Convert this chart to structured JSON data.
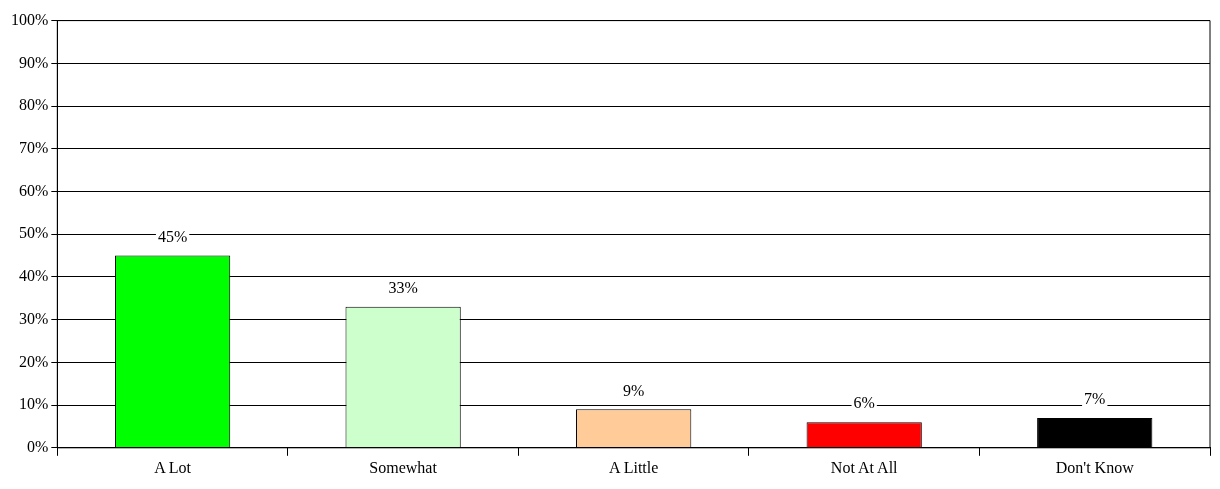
{
  "chart_data": {
    "type": "bar",
    "categories": [
      "A Lot",
      "Somewhat",
      "A Little",
      "Not At All",
      "Don't Know"
    ],
    "values": [
      45,
      33,
      9,
      6,
      7
    ],
    "colors": [
      "#00ff00",
      "#ccffcc",
      "#ffcc99",
      "#ff0000",
      "#000000"
    ],
    "value_labels": [
      "45%",
      "33%",
      "9%",
      "6%",
      "7%"
    ],
    "ylim": [
      0,
      100
    ],
    "yticks": [
      {
        "value": 0,
        "label": "0%"
      },
      {
        "value": 10,
        "label": "10%"
      },
      {
        "value": 20,
        "label": "20%"
      },
      {
        "value": 30,
        "label": "30%"
      },
      {
        "value": 40,
        "label": "40%"
      },
      {
        "value": 50,
        "label": "50%"
      },
      {
        "value": 60,
        "label": "60%"
      },
      {
        "value": 70,
        "label": "70%"
      },
      {
        "value": 80,
        "label": "80%"
      },
      {
        "value": 90,
        "label": "90%"
      },
      {
        "value": 100,
        "label": "100%"
      }
    ],
    "grid": "y",
    "legend": false
  }
}
